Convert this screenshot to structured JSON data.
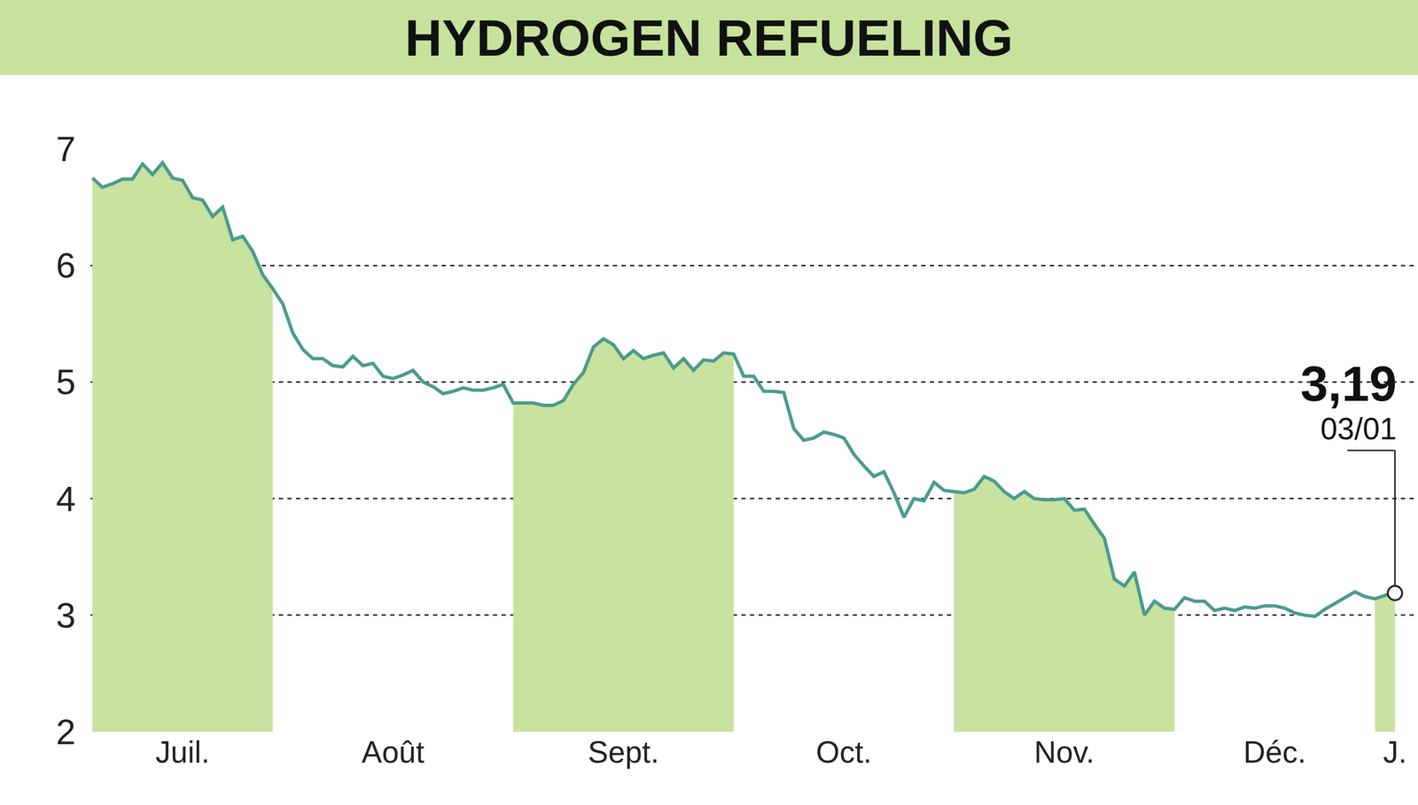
{
  "chart_data": {
    "type": "line",
    "title": "HYDROGEN REFUELING",
    "categories": [
      null,
      null,
      null,
      null,
      null,
      null,
      null,
      null,
      null,
      "Juil.",
      null,
      null,
      null,
      null,
      null,
      null,
      null,
      null,
      null,
      null,
      null,
      null,
      null,
      null,
      null,
      null,
      null,
      null,
      null,
      null,
      "Août",
      null,
      null,
      null,
      null,
      null,
      null,
      null,
      null,
      null,
      null,
      null,
      null,
      null,
      null,
      null,
      null,
      null,
      null,
      null,
      null,
      null,
      null,
      "Sept.",
      null,
      null,
      null,
      null,
      null,
      null,
      null,
      null,
      null,
      null,
      null,
      null,
      null,
      null,
      null,
      null,
      null,
      null,
      null,
      null,
      null,
      "Oct.",
      null,
      null,
      null,
      null,
      null,
      null,
      null,
      null,
      null,
      null,
      null,
      null,
      null,
      null,
      null,
      null,
      null,
      null,
      null,
      null,
      null,
      "Nov.",
      null,
      null,
      null,
      null,
      null,
      null,
      null,
      null,
      null,
      null,
      null,
      null,
      null,
      null,
      null,
      null,
      null,
      null,
      null,
      null,
      "Déc.",
      null,
      null,
      null,
      null,
      null,
      null,
      null,
      null,
      null,
      null,
      null,
      "J."
    ],
    "values": [
      6.75,
      6.67,
      6.7,
      6.74,
      6.74,
      6.87,
      6.78,
      6.88,
      6.75,
      6.73,
      6.58,
      6.56,
      6.42,
      6.5,
      6.22,
      6.25,
      6.12,
      5.92,
      5.8,
      5.67,
      5.42,
      5.28,
      5.2,
      5.2,
      5.14,
      5.13,
      5.22,
      5.14,
      5.16,
      5.05,
      5.03,
      5.06,
      5.1,
      5.0,
      4.96,
      4.9,
      4.92,
      4.95,
      4.93,
      4.93,
      4.95,
      4.98,
      4.82,
      4.82,
      4.82,
      4.8,
      4.8,
      4.84,
      4.98,
      5.08,
      5.3,
      5.37,
      5.32,
      5.2,
      5.27,
      5.2,
      5.23,
      5.25,
      5.12,
      5.2,
      5.1,
      5.19,
      5.18,
      5.25,
      5.24,
      5.05,
      5.05,
      4.92,
      4.92,
      4.91,
      4.6,
      4.5,
      4.52,
      4.57,
      4.55,
      4.52,
      4.38,
      4.28,
      4.19,
      4.23,
      4.05,
      3.84,
      4.0,
      3.98,
      4.14,
      4.07,
      4.06,
      4.05,
      4.08,
      4.19,
      4.15,
      4.06,
      4.0,
      4.06,
      4.0,
      3.99,
      3.99,
      4.0,
      3.9,
      3.91,
      3.78,
      3.66,
      3.31,
      3.25,
      3.37,
      3.0,
      3.12,
      3.06,
      3.05,
      3.15,
      3.12,
      3.12,
      3.04,
      3.06,
      3.04,
      3.07,
      3.06,
      3.08,
      3.08,
      3.06,
      3.02,
      3.0,
      2.99,
      3.05,
      3.1,
      3.15,
      3.2,
      3.16,
      3.14,
      3.17,
      3.19
    ],
    "color": "#4a9b8e",
    "ylim": [
      2,
      7
    ],
    "yticks": [
      2,
      3,
      4,
      5,
      6,
      7
    ],
    "grid": true,
    "annotations": [
      {
        "text": "3,19"
      },
      {
        "text": "03/01"
      }
    ]
  }
}
